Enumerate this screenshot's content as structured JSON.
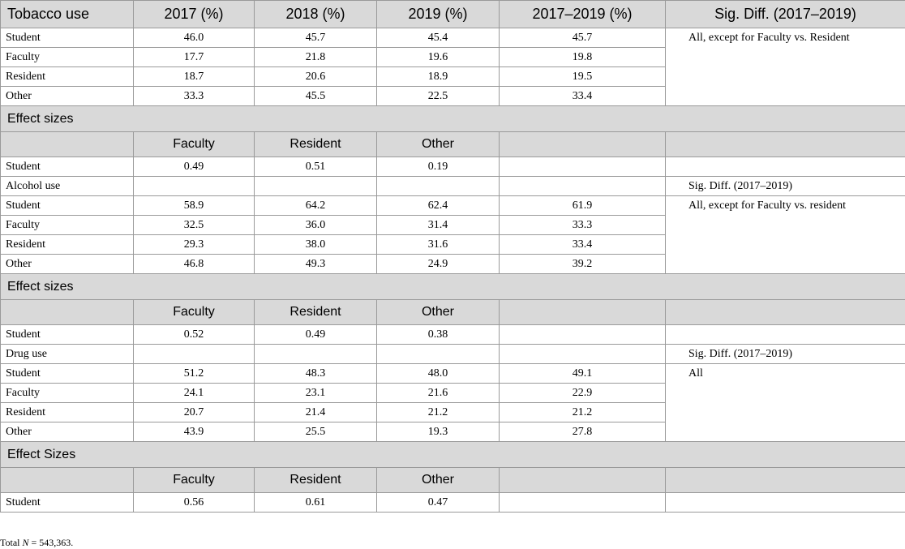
{
  "table": {
    "header": [
      "Tobacco use",
      "2017 (%)",
      "2018 (%)",
      "2019 (%)",
      "2017–2019 (%)",
      "Sig. Diff. (2017–2019)"
    ],
    "tobacco": {
      "rows": [
        {
          "label": "Student",
          "values": [
            "46.0",
            "45.7",
            "45.4",
            "45.7"
          ]
        },
        {
          "label": "Faculty",
          "values": [
            "17.7",
            "21.8",
            "19.6",
            "19.8"
          ]
        },
        {
          "label": "Resident",
          "values": [
            "18.7",
            "20.6",
            "18.9",
            "19.5"
          ]
        },
        {
          "label": "Other",
          "values": [
            "33.3",
            "45.5",
            "22.5",
            "33.4"
          ]
        }
      ],
      "sig": "All, except for Faculty vs. Resident",
      "effect_title": "Effect sizes",
      "effect_cols": [
        "Faculty",
        "Resident",
        "Other"
      ],
      "effect_row": {
        "label": "Student",
        "values": [
          "0.49",
          "0.51",
          "0.19"
        ]
      }
    },
    "alcohol": {
      "title": "Alcohol use",
      "sig_header": "Sig. Diff. (2017–2019)",
      "rows": [
        {
          "label": "Student",
          "values": [
            "58.9",
            "64.2",
            "62.4",
            "61.9"
          ]
        },
        {
          "label": "Faculty",
          "values": [
            "32.5",
            "36.0",
            "31.4",
            "33.3"
          ]
        },
        {
          "label": "Resident",
          "values": [
            "29.3",
            "38.0",
            "31.6",
            "33.4"
          ]
        },
        {
          "label": "Other",
          "values": [
            "46.8",
            "49.3",
            "24.9",
            "39.2"
          ]
        }
      ],
      "sig": "All, except for Faculty vs. resident",
      "effect_title": "Effect sizes",
      "effect_cols": [
        "Faculty",
        "Resident",
        "Other"
      ],
      "effect_row": {
        "label": "Student",
        "values": [
          "0.52",
          "0.49",
          "0.38"
        ]
      }
    },
    "drug": {
      "title": "Drug use",
      "sig_header": "Sig. Diff. (2017–2019)",
      "rows": [
        {
          "label": "Student",
          "values": [
            "51.2",
            "48.3",
            "48.0",
            "49.1"
          ]
        },
        {
          "label": "Faculty",
          "values": [
            "24.1",
            "23.1",
            "21.6",
            "22.9"
          ]
        },
        {
          "label": "Resident",
          "values": [
            "20.7",
            "21.4",
            "21.2",
            "21.2"
          ]
        },
        {
          "label": "Other",
          "values": [
            "43.9",
            "25.5",
            "19.3",
            "27.8"
          ]
        }
      ],
      "sig": "All",
      "effect_title": "Effect Sizes",
      "effect_cols": [
        "Faculty",
        "Resident",
        "Other"
      ],
      "effect_row": {
        "label": "Student",
        "values": [
          "0.56",
          "0.61",
          "0.47"
        ]
      }
    }
  },
  "note": {
    "prefix": "Total ",
    "variable": "N",
    "rest": " = 543,363."
  }
}
